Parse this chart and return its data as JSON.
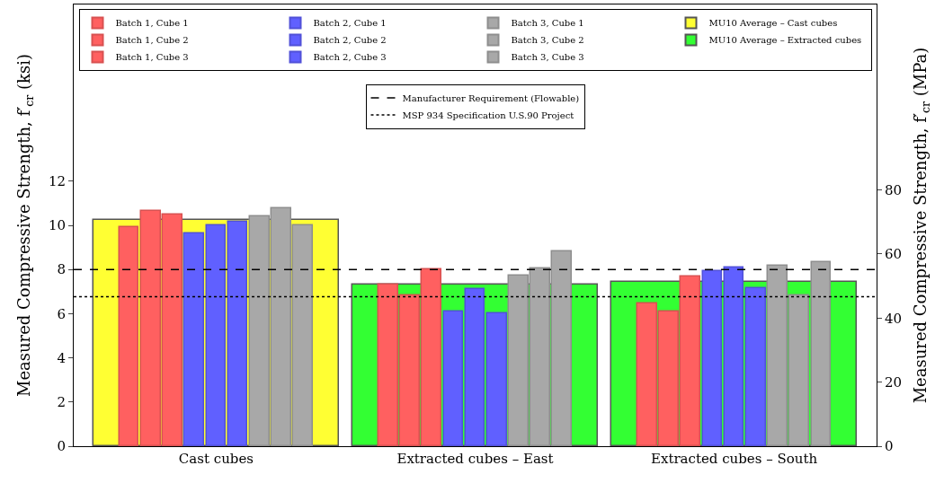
{
  "chart_data": {
    "type": "bar",
    "categories": [
      "Cast cubes",
      "Extracted cubes – East",
      "Extracted cubes – South"
    ],
    "ylabel": "Measured Compressive Strength, f′$_{cr}$ (ksi)",
    "y2label": "Measured Compressive Strength, f′$_{cr}$ (MPa)",
    "ylim": [
      0,
      20
    ],
    "yticks": [
      0,
      2,
      4,
      6,
      8,
      10,
      12
    ],
    "y2lim": [
      0,
      137.9
    ],
    "y2ticks": [
      0,
      20,
      40,
      60,
      80
    ],
    "legend": "top",
    "series": [
      {
        "name": "MU10 Average – Cast cubes",
        "color": "#ffff33",
        "values": [
          10.25,
          null,
          null
        ]
      },
      {
        "name": "MU10 Average – Extracted cubes",
        "color": "#33ff33",
        "values": [
          null,
          7.32,
          7.43
        ]
      },
      {
        "name": "Batch 1, Cube 1",
        "color": "#ff6060",
        "values": [
          9.9,
          7.32,
          6.46
        ]
      },
      {
        "name": "Batch 1, Cube 2",
        "color": "#ff6060",
        "values": [
          10.67,
          6.82,
          6.08
        ]
      },
      {
        "name": "Batch 1, Cube 3",
        "color": "#ff6060",
        "values": [
          10.48,
          8.0,
          7.68
        ]
      },
      {
        "name": "Batch 2, Cube 1",
        "color": "#6060ff",
        "values": [
          9.65,
          6.1,
          7.92
        ]
      },
      {
        "name": "Batch 2, Cube 2",
        "color": "#6060ff",
        "values": [
          10.0,
          7.1,
          8.08
        ]
      },
      {
        "name": "Batch 2, Cube 3",
        "color": "#6060ff",
        "values": [
          10.16,
          6.01,
          7.15
        ]
      },
      {
        "name": "Batch 3, Cube 1",
        "color": "#a8a8a8",
        "values": [
          10.41,
          7.72,
          8.17
        ]
      },
      {
        "name": "Batch 3, Cube 2",
        "color": "#a8a8a8",
        "values": [
          10.78,
          8.04,
          6.81
        ]
      },
      {
        "name": "Batch 3, Cube 3",
        "color": "#a8a8a8",
        "values": [
          10.0,
          8.82,
          8.33
        ]
      }
    ],
    "ref_lines": [
      {
        "axis": "y",
        "value": 8.0,
        "label": "Manufacturer Requirement (Flowable)",
        "color": "#000000",
        "line_style": "dashed"
      },
      {
        "axis": "y",
        "value": 6.77,
        "label": "MSP 934 Specification U.S.90 Project",
        "color": "#000000",
        "line_style": "dotted"
      }
    ]
  }
}
